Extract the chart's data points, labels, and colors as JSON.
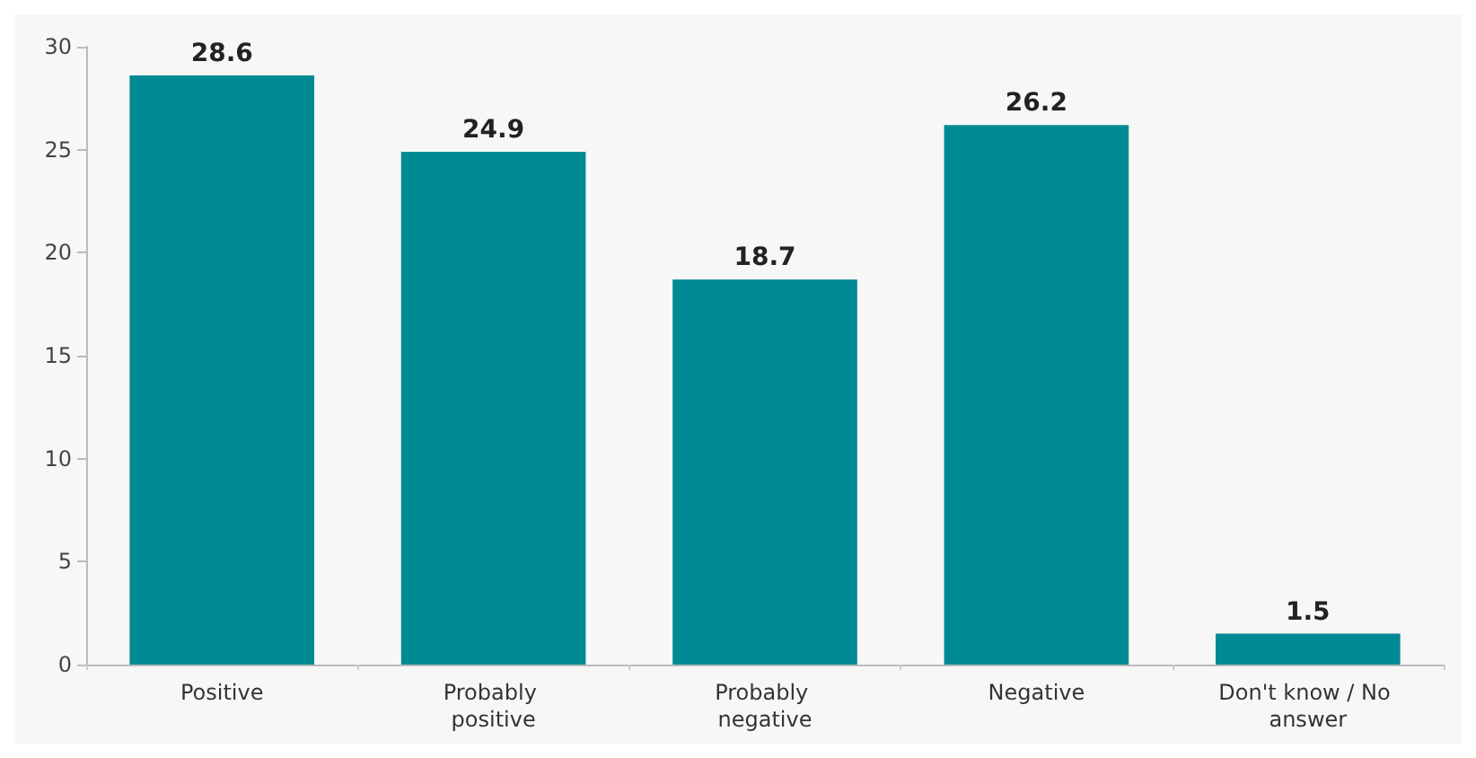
{
  "chart_data": {
    "type": "bar",
    "categories": [
      "Positive",
      "Probably positive",
      "Probably negative",
      "Negative",
      "Don't know / No answer"
    ],
    "values": [
      28.6,
      24.9,
      18.7,
      26.2,
      1.5
    ],
    "color": "#008a94",
    "ylim": [
      0,
      30
    ],
    "yticks": [
      0,
      5,
      10,
      15,
      20,
      25,
      30
    ],
    "grid": false,
    "data_labels": true
  }
}
